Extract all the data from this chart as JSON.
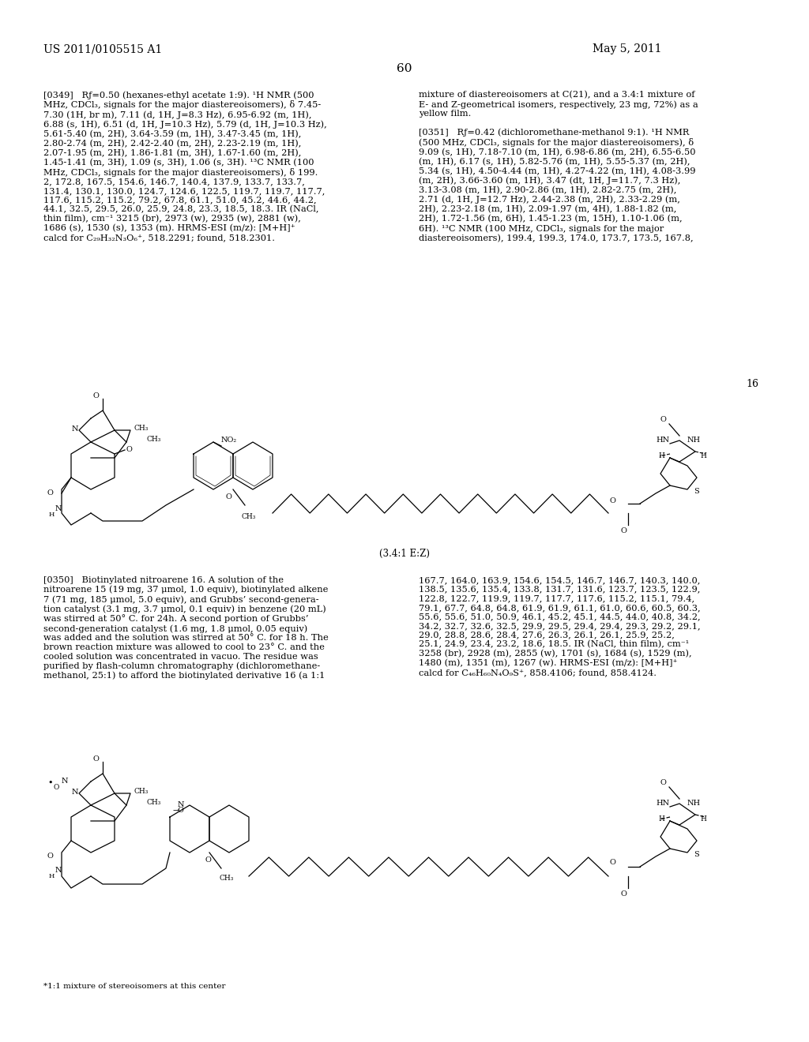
{
  "patent_number": "US 2011/0105515 A1",
  "date": "May 5, 2011",
  "page_number": "60",
  "scheme_number": "16",
  "background_color": "#ffffff",
  "text_color": "#000000",
  "font_size_body": 8.5,
  "font_size_header": 10,
  "paragraph_0349_left": "[0349]   Rƒ=0.50 (hexanes-ethyl acetate 1:9). ¹H NMR (500\nMHz, CDCl₃, signals for the major diastereoisomers), δ 7.45-\n7.30 (1H, br m), 7.11 (d, 1H, J=8.3 Hz), 6.95-6.92 (m, 1H),\n6.88 (s, 1H), 6.51 (d, 1H, J=10.3 Hz), 5.79 (d, 1H, J=10.3 Hz),\n5.61-5.40 (m, 2H), 3.64-3.59 (m, 1H), 3.47-3.45 (m, 1H),\n2.80-2.74 (m, 2H), 2.42-2.40 (m, 2H), 2.23-2.19 (m, 1H),\n2.07-1.95 (m, 2H), 1.86-1.81 (m, 3H), 1.67-1.60 (m, 2H),\n1.45-1.41 (m, 3H), 1.09 (s, 3H), 1.06 (s, 3H). ¹³C NMR (100\nMHz, CDCl₃, signals for the major diastereoisomers), δ 199.\n2, 172.8, 167.5, 154.6, 146.7, 140.4, 137.9, 133.7, 133.7,\n131.4, 130.1, 130.0, 124.7, 124.6, 122.5, 119.7, 119.7, 117.7,\n117.6, 115.2, 115.2, 79.2, 67.8, 61.1, 51.0, 45.2, 44.6, 44.2,\n44.1, 32.5, 29.5, 26.0, 25.9, 24.8, 23.3, 18.5, 18.3. IR (NaCl,\nthin film), cm⁻¹ 3215 (br), 2973 (w), 2935 (w), 2881 (w),\n1686 (s), 1530 (s), 1353 (m). HRMS-ESI (m/z): [M+H]⁺\ncalcd for C₂₉H₃₂N₃O₆⁺, 518.2291; found, 518.2301.",
  "paragraph_0349_right": "mixture of diastereoisomers at C(21), and a 3.4:1 mixture of\nE- and Z-geometrical isomers, respectively, 23 mg, 72%) as a\nyellow film.\n\n[0351]   Rƒ=0.42 (dichloromethane-methanol 9:1). ¹H NMR\n(500 MHz, CDCl₃, signals for the major diastereoisomers), δ\n9.09 (s, 1H), 7.18-7.10 (m, 1H), 6.98-6.86 (m, 2H), 6.55-6.50\n(m, 1H), 6.17 (s, 1H), 5.82-5.76 (m, 1H), 5.55-5.37 (m, 2H),\n5.34 (s, 1H), 4.50-4.44 (m, 1H), 4.27-4.22 (m, 1H), 4.08-3.99\n(m, 2H), 3.66-3.60 (m, 1H), 3.47 (dt, 1H, J=11.7, 7.3 Hz),\n3.13-3.08 (m, 1H), 2.90-2.86 (m, 1H), 2.82-2.75 (m, 2H),\n2.71 (d, 1H, J=12.7 Hz), 2.44-2.38 (m, 2H), 2.33-2.29 (m,\n2H), 2.23-2.18 (m, 1H), 2.09-1.97 (m, 4H), 1.88-1.82 (m,\n2H), 1.72-1.56 (m, 6H), 1.45-1.23 (m, 15H), 1.10-1.06 (m,\n6H). ¹³C NMR (100 MHz, CDCl₃, signals for the major\ndiastereoisomers), 199.4, 199.3, 174.0, 173.7, 173.5, 167.8,",
  "paragraph_0350_left": "[0350]   Biotinylated nitroarene 16. A solution of the\nnitroarene 15 (19 mg, 37 μmol, 1.0 equiv), biotinylated alkene\n7 (71 mg, 185 μmol, 5.0 equiv), and Grubbs’ second-genera-\ntion catalyst (3.1 mg, 3.7 μmol, 0.1 equiv) in benzene (20 mL)\nwas stirred at 50° C. for 24h. A second portion of Grubbs’\nsecond-generation catalyst (1.6 mg, 1.8 μmol, 0.05 equiv)\nwas added and the solution was stirred at 50° C. for 18 h. The\nbrown reaction mixture was allowed to cool to 23° C. and the\ncooled solution was concentrated in vacuo. The residue was\npurified by flash-column chromatography (dichloromethane-\nmethanol, 25:1) to afford the biotinylated derivative 16 (a 1:1",
  "paragraph_0350_right": "167.7, 164.0, 163.9, 154.6, 154.5, 146.7, 146.7, 140.3, 140.0,\n138.5, 135.6, 135.4, 133.8, 131.7, 131.6, 123.7, 123.5, 122.9,\n122.8, 122.7, 119.9, 119.7, 117.7, 117.6, 115.2, 115.1, 79.4,\n79.1, 67.7, 64.8, 64.8, 61.9, 61.9, 61.1, 61.0, 60.6, 60.5, 60.3,\n55.6, 55.6, 51.0, 50.9, 46.1, 45.2, 45.1, 44.5, 44.0, 40.8, 34.2,\n34.2, 32.7, 32.6, 32.5, 29.9, 29.5, 29.4, 29.4, 29.3, 29.2, 29.1,\n29.0, 28.8, 28.6, 28.4, 27.6, 26.3, 26.1, 26.1, 25.9, 25.2,\n25.1, 24.9, 23.4, 23.2, 18.6, 18.5. IR (NaCl, thin film), cm⁻¹\n3258 (br), 2928 (m), 2855 (w), 1701 (s), 1684 (s), 1529 (m),\n1480 (m), 1351 (m), 1267 (w). HRMS-ESI (m/z): [M+H]⁺\ncalcd for C₄₆H₆₀N₄O₉S⁺, 858.4106; found, 858.4124.",
  "footnote": "*1:1 mixture of stereoisomers at this center",
  "caption_16": "(3.4:1 E:Z)"
}
